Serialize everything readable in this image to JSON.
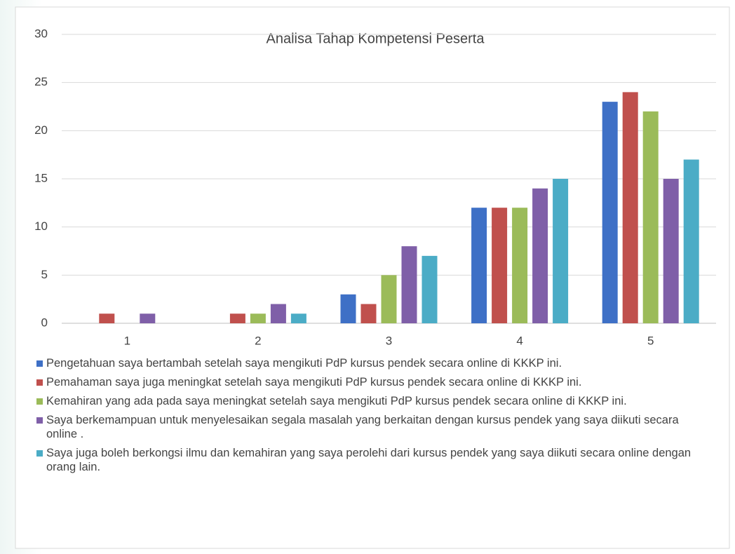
{
  "chart_data": {
    "type": "bar",
    "title": "Analisa Tahap Kompetensi Peserta",
    "categories": [
      "1",
      "2",
      "3",
      "4",
      "5"
    ],
    "series": [
      {
        "name": "Pengetahuan saya bertambah setelah saya mengikuti PdP kursus pendek secara online di KKKP ini.",
        "color": "#3e70c6",
        "values": [
          0,
          0,
          3,
          12,
          23
        ]
      },
      {
        "name": "Pemahaman saya juga meningkat setelah saya mengikuti PdP kursus pendek secara online  di KKKP ini.",
        "color": "#c0504d",
        "values": [
          1,
          1,
          2,
          12,
          24
        ]
      },
      {
        "name": "Kemahiran yang ada pada saya meningkat setelah saya mengikuti PdP kursus pendek secara online  di KKKP ini.",
        "color": "#9bbb59",
        "values": [
          0,
          1,
          5,
          12,
          22
        ]
      },
      {
        "name": "Saya berkemampuan untuk menyelesaikan segala masalah yang berkaitan dengan  kursus pendek yang saya diikuti secara online .",
        "color": "#7f5fa8",
        "values": [
          1,
          2,
          8,
          14,
          15
        ]
      },
      {
        "name": "Saya juga boleh berkongsi ilmu dan kemahiran yang saya perolehi dari kursus pendek yang saya diikuti secara online  dengan orang lain.",
        "color": "#4bacc6",
        "values": [
          0,
          1,
          7,
          15,
          17
        ]
      }
    ],
    "ylim": [
      0,
      30
    ],
    "yticks": [
      0,
      5,
      10,
      15,
      20,
      25,
      30
    ],
    "grid": true,
    "legend": "bottom"
  }
}
